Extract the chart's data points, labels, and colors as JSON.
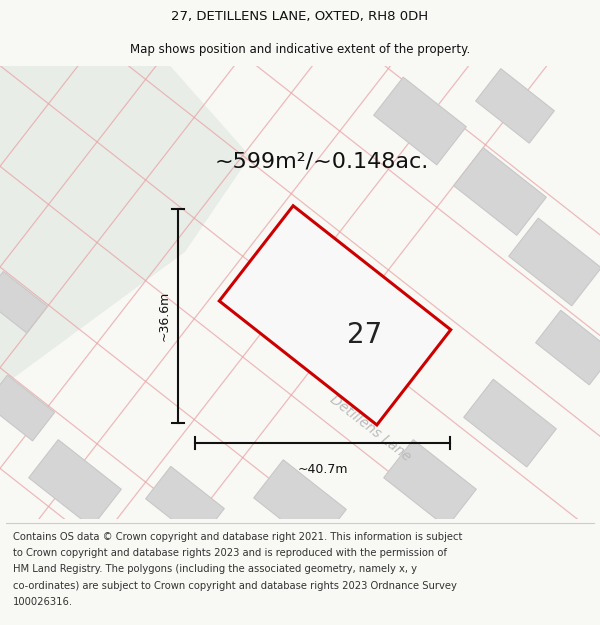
{
  "title_line1": "27, DETILLENS LANE, OXTED, RH8 0DH",
  "title_line2": "Map shows position and indicative extent of the property.",
  "area_label": "~599m²/~0.148ac.",
  "width_label": "~40.7m",
  "height_label": "~36.6m",
  "plot_number": "27",
  "road_label": "Detillens Lane",
  "footer_lines": [
    "Contains OS data © Crown copyright and database right 2021. This information is subject",
    "to Crown copyright and database rights 2023 and is reproduced with the permission of",
    "HM Land Registry. The polygons (including the associated geometry, namely x, y",
    "co-ordinates) are subject to Crown copyright and database rights 2023 Ordnance Survey",
    "100026316."
  ],
  "bg_color": "#f8f8f5",
  "map_bg": "#f2f2ee",
  "green_color": "#e8ede8",
  "building_fill": "#d5d5d5",
  "building_edge": "#c8c8c8",
  "road_line_color": "#e8a0a0",
  "plot_stroke": "#cc0000",
  "plot_fill": "#f8f8f8",
  "dim_color": "#111111",
  "road_label_color": "#bbbbbb",
  "title_fs": 9.5,
  "subtitle_fs": 8.5,
  "area_fs": 16,
  "dim_fs": 9,
  "plot_num_fs": 20,
  "road_label_fs": 10,
  "footer_fs": 7.2
}
